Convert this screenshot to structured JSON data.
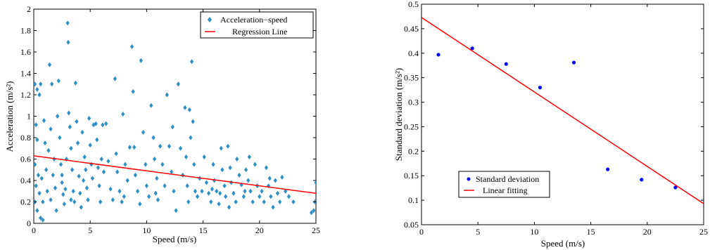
{
  "chart_data": [
    {
      "type": "scatter",
      "xlabel": "Speed (m/s)",
      "ylabel": "Acceleration (m/s²)",
      "xlim": [
        0,
        25
      ],
      "ylim": [
        0,
        2
      ],
      "xticks": [
        "0",
        "5",
        "10",
        "15",
        "20",
        "25"
      ],
      "yticks": [
        "0",
        "0.2",
        "0.4",
        "0.6",
        "0.8",
        "1",
        "1.2",
        "1.4",
        "1.6",
        "1.8",
        "2"
      ],
      "grid": false,
      "legend_position": "top-right",
      "series": [
        {
          "name": "Acceleration−speed",
          "kind": "scatter",
          "marker": "diamond",
          "color": "#2f8fc4",
          "points": [
            [
              0.1,
              1.3
            ],
            [
              0.3,
              1.25
            ],
            [
              0.5,
              1.2
            ],
            [
              0.6,
              1.3
            ],
            [
              0.2,
              0.92
            ],
            [
              0.3,
              0.78
            ],
            [
              0.1,
              0.55
            ],
            [
              0.4,
              0.45
            ],
            [
              0.2,
              0.35
            ],
            [
              0.5,
              0.28
            ],
            [
              0.1,
              0.2
            ],
            [
              0.3,
              0.12
            ],
            [
              0.6,
              0.05
            ],
            [
              0.8,
              0.03
            ],
            [
              0.9,
              0.96
            ],
            [
              1.0,
              0.75
            ],
            [
              1.1,
              0.5
            ],
            [
              1.2,
              0.3
            ],
            [
              0.8,
              0.2
            ],
            [
              0.7,
              0.42
            ],
            [
              1.4,
              1.48
            ],
            [
              1.6,
              1.3
            ],
            [
              1.5,
              0.88
            ],
            [
              1.8,
              0.6
            ],
            [
              1.7,
              0.45
            ],
            [
              1.9,
              0.33
            ],
            [
              1.5,
              0.22
            ],
            [
              2.0,
              0.12
            ],
            [
              2.2,
              1.33
            ],
            [
              2.1,
              1.0
            ],
            [
              2.3,
              0.8
            ],
            [
              2.4,
              0.55
            ],
            [
              2.5,
              0.38
            ],
            [
              2.6,
              0.27
            ],
            [
              2.7,
              0.18
            ],
            [
              2.8,
              0.32
            ],
            [
              2.9,
              0.6
            ],
            [
              3.0,
              1.87
            ],
            [
              3.05,
              1.69
            ],
            [
              3.1,
              1.03
            ],
            [
              3.2,
              0.9
            ],
            [
              3.3,
              0.7
            ],
            [
              3.4,
              0.5
            ],
            [
              3.5,
              0.3
            ],
            [
              3.6,
              0.2
            ],
            [
              3.7,
              1.31
            ],
            [
              3.8,
              0.95
            ],
            [
              3.9,
              0.75
            ],
            [
              4.0,
              0.44
            ],
            [
              4.1,
              0.28
            ],
            [
              4.2,
              0.15
            ],
            [
              4.3,
              0.85
            ],
            [
              4.5,
              0.62
            ],
            [
              4.6,
              0.5
            ],
            [
              4.7,
              0.33
            ],
            [
              4.8,
              0.22
            ],
            [
              4.9,
              0.98
            ],
            [
              5.0,
              0.73
            ],
            [
              5.1,
              0.55
            ],
            [
              5.2,
              0.42
            ],
            [
              5.3,
              0.92
            ],
            [
              5.5,
              0.93
            ],
            [
              5.6,
              0.78
            ],
            [
              5.7,
              0.52
            ],
            [
              5.8,
              0.35
            ],
            [
              5.9,
              0.2
            ],
            [
              6.1,
              0.92
            ],
            [
              6.2,
              0.48
            ],
            [
              6.4,
              0.93
            ],
            [
              6.6,
              0.58
            ],
            [
              6.8,
              0.32
            ],
            [
              7.0,
              0.22
            ],
            [
              7.2,
              1.35
            ],
            [
              7.3,
              0.65
            ],
            [
              7.4,
              0.48
            ],
            [
              7.6,
              0.3
            ],
            [
              7.8,
              0.2
            ],
            [
              7.9,
              1.02
            ],
            [
              8.1,
              0.55
            ],
            [
              8.3,
              0.4
            ],
            [
              8.5,
              0.71
            ],
            [
              8.7,
              1.65
            ],
            [
              8.8,
              1.23
            ],
            [
              8.9,
              0.71
            ],
            [
              9.0,
              0.45
            ],
            [
              9.2,
              0.3
            ],
            [
              9.4,
              0.18
            ],
            [
              9.5,
              1.52
            ],
            [
              9.7,
              0.85
            ],
            [
              9.9,
              0.55
            ],
            [
              10.0,
              0.35
            ],
            [
              10.2,
              0.25
            ],
            [
              10.4,
              1.1
            ],
            [
              10.6,
              0.8
            ],
            [
              10.7,
              0.6
            ],
            [
              10.9,
              0.42
            ],
            [
              11.0,
              0.22
            ],
            [
              11.2,
              0.72
            ],
            [
              11.4,
              0.55
            ],
            [
              11.6,
              0.35
            ],
            [
              11.8,
              1.2
            ],
            [
              12.0,
              0.72
            ],
            [
              12.2,
              0.48
            ],
            [
              12.4,
              0.3
            ],
            [
              12.6,
              0.12
            ],
            [
              12.8,
              1.3
            ],
            [
              13.0,
              0.7
            ],
            [
              13.2,
              0.45
            ],
            [
              13.4,
              1.08
            ],
            [
              13.5,
              0.62
            ],
            [
              13.6,
              0.35
            ],
            [
              13.7,
              0.2
            ],
            [
              13.8,
              1.06
            ],
            [
              13.9,
              0.8
            ],
            [
              14.0,
              1.51
            ],
            [
              14.1,
              0.95
            ],
            [
              14.2,
              0.55
            ],
            [
              14.3,
              0.3
            ],
            [
              14.5,
              0.25
            ],
            [
              14.7,
              0.42
            ],
            [
              14.9,
              0.3
            ],
            [
              15.1,
              0.62
            ],
            [
              15.3,
              0.38
            ],
            [
              15.5,
              0.28
            ],
            [
              15.7,
              0.2
            ],
            [
              15.9,
              0.55
            ],
            [
              16.0,
              0.4
            ],
            [
              16.2,
              0.3
            ],
            [
              16.4,
              0.18
            ],
            [
              16.6,
              0.7
            ],
            [
              16.7,
              0.5
            ],
            [
              16.9,
              0.35
            ],
            [
              17.0,
              0.25
            ],
            [
              17.2,
              0.72
            ],
            [
              17.4,
              0.52
            ],
            [
              17.5,
              0.38
            ],
            [
              17.7,
              0.28
            ],
            [
              17.9,
              0.2
            ],
            [
              18.0,
              0.6
            ],
            [
              18.2,
              0.45
            ],
            [
              18.4,
              0.36
            ],
            [
              18.6,
              0.25
            ],
            [
              18.8,
              0.5
            ],
            [
              19.0,
              0.4
            ],
            [
              19.2,
              0.3
            ],
            [
              19.4,
              0.2
            ],
            [
              19.6,
              0.55
            ],
            [
              19.8,
              0.35
            ],
            [
              20.0,
              0.25
            ],
            [
              20.2,
              0.3
            ],
            [
              20.4,
              0.2
            ],
            [
              20.6,
              0.52
            ],
            [
              20.8,
              0.35
            ],
            [
              21.0,
              0.25
            ],
            [
              21.2,
              0.15
            ],
            [
              21.4,
              0.4
            ],
            [
              21.6,
              0.28
            ],
            [
              21.8,
              0.2
            ],
            [
              22.0,
              0.43
            ],
            [
              22.3,
              0.3
            ],
            [
              22.6,
              0.25
            ],
            [
              23.0,
              0.2
            ],
            [
              24.6,
              0.1
            ],
            [
              24.9,
              0.2
            ],
            [
              25.0,
              0.38
            ],
            [
              24.8,
              0.12
            ],
            [
              1.3,
              0.68
            ],
            [
              6.0,
              0.6
            ],
            [
              8.0,
              0.25
            ],
            [
              12.3,
              0.9
            ],
            [
              15.8,
              0.32
            ],
            [
              19.1,
              0.62
            ],
            [
              17.3,
              0.15
            ],
            [
              10.8,
              0.28
            ],
            [
              4.4,
              0.4
            ],
            [
              2.5,
              0.45
            ],
            [
              3.3,
              0.22
            ],
            [
              16.5,
              0.28
            ],
            [
              20.9,
              0.42
            ],
            [
              18.7,
              0.3
            ]
          ]
        },
        {
          "name": "Regression Line",
          "kind": "line",
          "color": "#ff0000",
          "x": [
            0,
            25
          ],
          "y": [
            0.63,
            0.28
          ]
        }
      ]
    },
    {
      "type": "scatter",
      "xlabel": "Speed (m/s)",
      "ylabel": "Standard deviation (m/s²)",
      "xlim": [
        0,
        25
      ],
      "ylim": [
        0.05,
        0.5
      ],
      "xticks": [
        "0",
        "5",
        "10",
        "15",
        "20",
        "25"
      ],
      "yticks": [
        "0.05",
        "0.1",
        "0.15",
        "0.2",
        "0.25",
        "0.3",
        "0.35",
        "0.4",
        "0.45",
        "0.5"
      ],
      "grid": false,
      "legend_position": "bottom-left",
      "series": [
        {
          "name": "Standard deviation",
          "kind": "scatter",
          "marker": "dot",
          "color": "#0000ff",
          "points": [
            [
              1.5,
              0.397
            ],
            [
              4.5,
              0.41
            ],
            [
              7.5,
              0.378
            ],
            [
              10.5,
              0.33
            ],
            [
              13.5,
              0.381
            ],
            [
              16.5,
              0.163
            ],
            [
              19.5,
              0.142
            ],
            [
              22.5,
              0.126
            ]
          ]
        },
        {
          "name": "Linear fitting",
          "kind": "line",
          "color": "#ff0000",
          "x": [
            0,
            25
          ],
          "y": [
            0.473,
            0.093
          ]
        }
      ]
    }
  ]
}
